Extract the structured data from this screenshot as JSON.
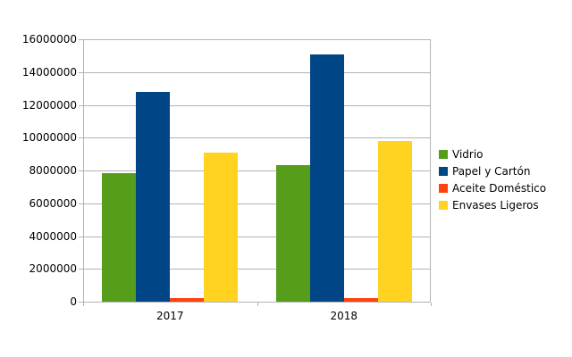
{
  "chart_data": {
    "type": "bar",
    "title": "",
    "xlabel": "",
    "ylabel": "",
    "categories": [
      "2017",
      "2018"
    ],
    "series": [
      {
        "name": "Vidrio",
        "color": "#579D1C",
        "values": [
          7850000,
          8300000
        ]
      },
      {
        "name": "Papel y Cartón",
        "color": "#004586",
        "values": [
          12800000,
          15050000
        ]
      },
      {
        "name": "Aceite Doméstico",
        "color": "#FF420E",
        "values": [
          220000,
          220000
        ]
      },
      {
        "name": "Envases Ligeros",
        "color": "#FFD320",
        "values": [
          9100000,
          9800000
        ]
      }
    ],
    "ylim": [
      0,
      16000000
    ],
    "ytick_step": 2000000,
    "ytick_labels": [
      "0",
      "2000000",
      "4000000",
      "6000000",
      "8000000",
      "10000000",
      "12000000",
      "14000000",
      "16000000"
    ],
    "grid": true,
    "legend_position": "right",
    "colors": {
      "gridline": "#B3B3B3",
      "axis": "#B3B3B3",
      "background": "#FFFFFF",
      "text": "#000000"
    }
  }
}
